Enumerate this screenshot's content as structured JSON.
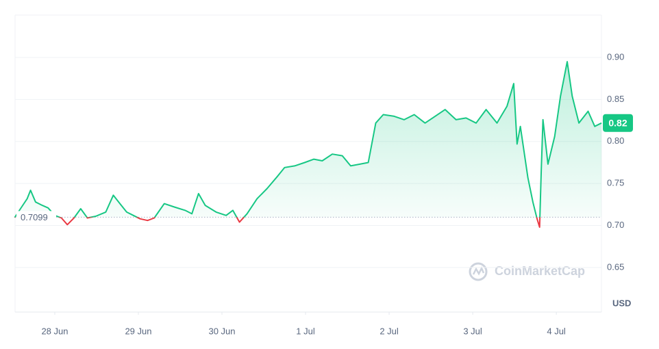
{
  "chart_data": {
    "type": "line",
    "x": [
      -0.48,
      -0.41,
      -0.33,
      -0.29,
      -0.23,
      -0.15,
      -0.08,
      0,
      0.08,
      0.15,
      0.23,
      0.31,
      0.39,
      0.49,
      0.61,
      0.7,
      0.78,
      0.86,
      0.94,
      1.02,
      1.11,
      1.19,
      1.31,
      1.43,
      1.56,
      1.64,
      1.72,
      1.8,
      1.93,
      2.05,
      2.13,
      2.21,
      2.3,
      2.42,
      2.54,
      2.66,
      2.75,
      2.87,
      2.99,
      3.1,
      3.2,
      3.32,
      3.44,
      3.54,
      3.65,
      3.75,
      3.84,
      3.93,
      4.06,
      4.18,
      4.3,
      4.43,
      4.55,
      4.67,
      4.8,
      4.92,
      5.04,
      5.16,
      5.29,
      5.41,
      5.49,
      5.53,
      5.57,
      5.66,
      5.72,
      5.77,
      5.8,
      5.82,
      5.84,
      5.9,
      5.98,
      6.05,
      6.13,
      6.19,
      6.27,
      6.38,
      6.46,
      6.54
    ],
    "series": [
      {
        "color": "#16c784",
        "below_color": "#ea3943",
        "values": [
          0.7095,
          0.72,
          0.732,
          0.742,
          0.728,
          0.724,
          0.721,
          0.712,
          0.709,
          0.701,
          0.709,
          0.72,
          0.709,
          0.711,
          0.716,
          0.736,
          0.726,
          0.716,
          0.712,
          0.708,
          0.706,
          0.709,
          0.726,
          0.722,
          0.718,
          0.714,
          0.738,
          0.724,
          0.716,
          0.712,
          0.718,
          0.704,
          0.714,
          0.732,
          0.744,
          0.758,
          0.769,
          0.771,
          0.775,
          0.779,
          0.777,
          0.785,
          0.783,
          0.771,
          0.773,
          0.775,
          0.822,
          0.832,
          0.83,
          0.826,
          0.832,
          0.822,
          0.83,
          0.838,
          0.826,
          0.828,
          0.822,
          0.838,
          0.822,
          0.842,
          0.869,
          0.797,
          0.818,
          0.757,
          0.728,
          0.708,
          0.698,
          0.765,
          0.826,
          0.773,
          0.806,
          0.854,
          0.895,
          0.854,
          0.822,
          0.836,
          0.818,
          0.822
        ]
      }
    ],
    "baseline": 0.7099,
    "current_price": {
      "value": 0.822,
      "label": "0.82"
    },
    "xlim": [
      -0.475,
      6.54
    ],
    "xticks": [
      {
        "value": 0,
        "label": "28 Jun"
      },
      {
        "value": 1,
        "label": "29 Jun"
      },
      {
        "value": 2,
        "label": "30 Jun"
      },
      {
        "value": 3,
        "label": "1 Jul"
      },
      {
        "value": 4,
        "label": "2 Jul"
      },
      {
        "value": 5,
        "label": "3 Jul"
      },
      {
        "value": 6,
        "label": "4 Jul"
      }
    ],
    "ylim": [
      0.597,
      0.9505
    ],
    "yticks": [
      {
        "value": 0.65,
        "label": "0.65"
      },
      {
        "value": 0.7,
        "label": "0.70"
      },
      {
        "value": 0.75,
        "label": "0.75"
      },
      {
        "value": 0.8,
        "label": "0.80"
      },
      {
        "value": 0.85,
        "label": "0.85"
      },
      {
        "value": 0.9,
        "label": "0.90"
      }
    ],
    "y_label": "USD",
    "watermark": "CoinMarketCap",
    "grid": true
  }
}
